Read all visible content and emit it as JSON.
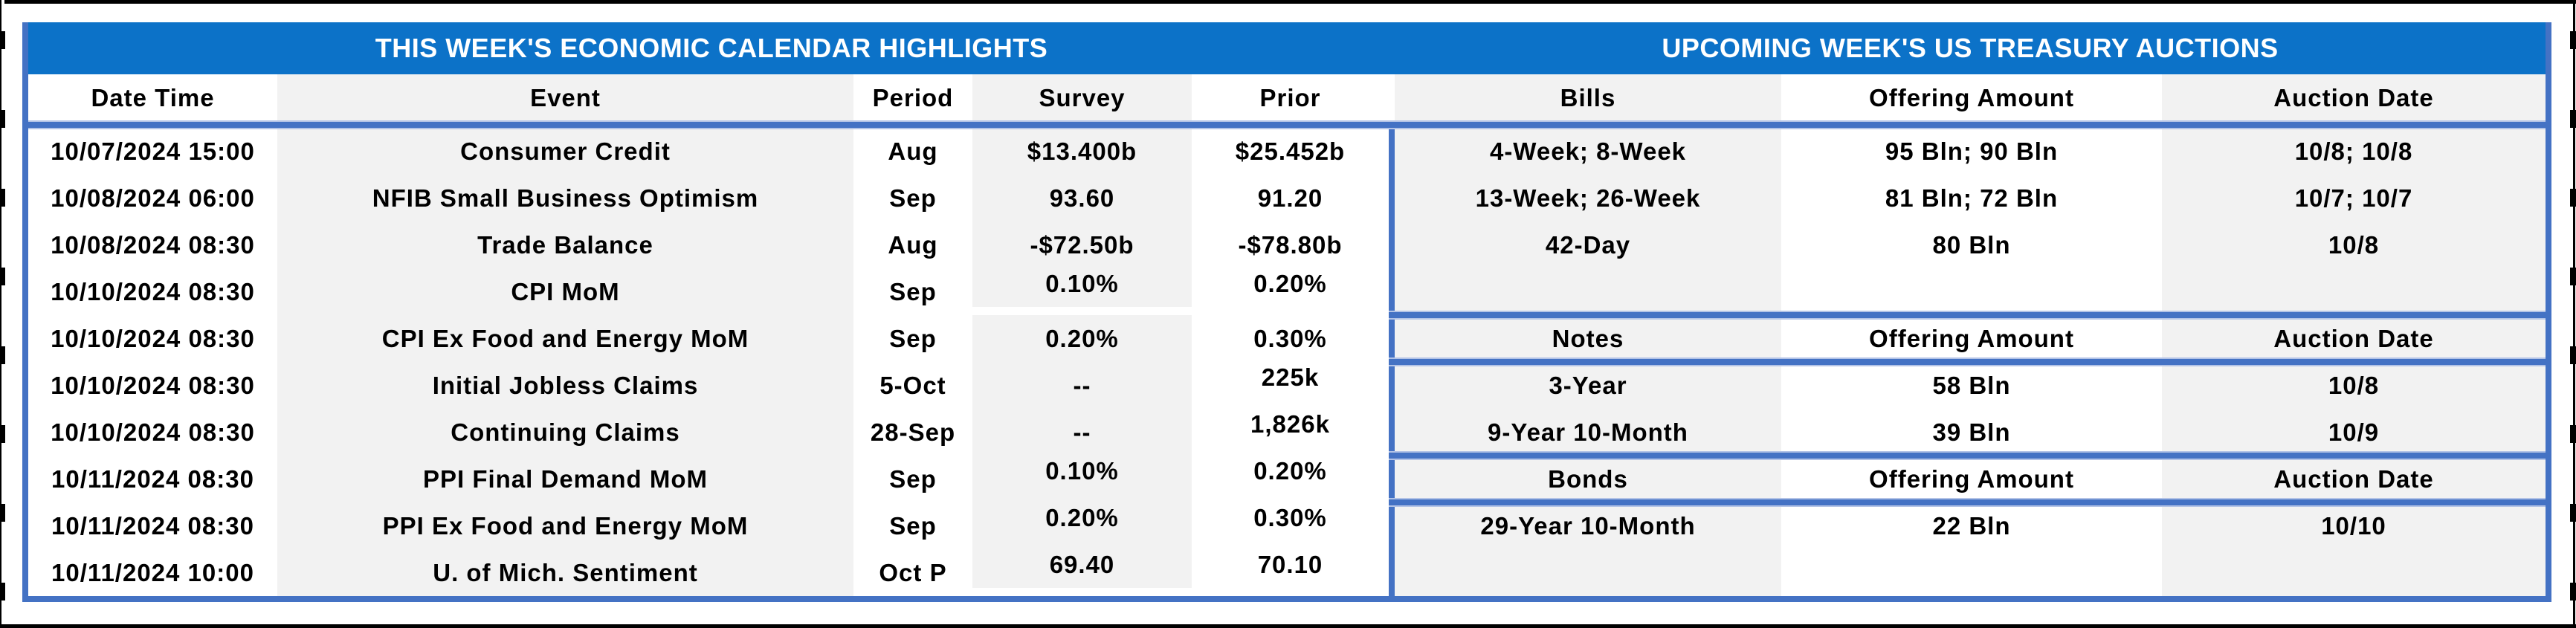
{
  "left_table": {
    "title": "THIS WEEK'S ECONOMIC CALENDAR HIGHLIGHTS",
    "columns": [
      "Date Time",
      "Event",
      "Period",
      "Survey",
      "Prior"
    ],
    "rows": [
      {
        "date": "10/07/2024 15:00",
        "event": "Consumer Credit",
        "period": "Aug",
        "survey": "$13.400b",
        "prior": "$25.452b"
      },
      {
        "date": "10/08/2024 06:00",
        "event": "NFIB Small Business Optimism",
        "period": "Sep",
        "survey": "93.60",
        "prior": "91.20"
      },
      {
        "date": "10/08/2024 08:30",
        "event": "Trade Balance",
        "period": "Aug",
        "survey": "-$72.50b",
        "prior": "-$78.80b"
      },
      {
        "date": "10/10/2024 08:30",
        "event": "CPI MoM",
        "period": "Sep",
        "survey": "0.10%",
        "prior": "0.20%"
      },
      {
        "date": "10/10/2024 08:30",
        "event": "CPI Ex Food and Energy MoM",
        "period": "Sep",
        "survey": "0.20%",
        "prior": "0.30%"
      },
      {
        "date": "10/10/2024 08:30",
        "event": "Initial Jobless Claims",
        "period": "5-Oct",
        "survey": "--",
        "prior": "225k"
      },
      {
        "date": "10/10/2024 08:30",
        "event": "Continuing Claims",
        "period": "28-Sep",
        "survey": "--",
        "prior": "1,826k"
      },
      {
        "date": "10/11/2024 08:30",
        "event": "PPI Final Demand MoM",
        "period": "Sep",
        "survey": "0.10%",
        "prior": "0.20%"
      },
      {
        "date": "10/11/2024 08:30",
        "event": "PPI Ex Food and Energy MoM",
        "period": "Sep",
        "survey": "0.20%",
        "prior": "0.30%"
      },
      {
        "date": "10/11/2024 10:00",
        "event": "U. of Mich. Sentiment",
        "period": "Oct P",
        "survey": "69.40",
        "prior": "70.10"
      }
    ]
  },
  "right_table": {
    "title": "UPCOMING WEEK'S US TREASURY AUCTIONS",
    "sections": [
      {
        "header": [
          "Bills",
          "Offering Amount",
          "Auction Date"
        ],
        "rows": [
          [
            "4-Week; 8-Week",
            "95 Bln; 90 Bln",
            "10/8; 10/8"
          ],
          [
            "13-Week; 26-Week",
            "81 Bln; 72 Bln",
            "10/7; 10/7"
          ],
          [
            "42-Day",
            "80 Bln",
            "10/8"
          ],
          [
            "",
            "",
            ""
          ]
        ]
      },
      {
        "header": [
          "Notes",
          "Offering Amount",
          "Auction Date"
        ],
        "rows": [
          [
            "3-Year",
            "58 Bln",
            "10/8"
          ],
          [
            "9-Year 10-Month",
            "39 Bln",
            "10/9"
          ]
        ]
      },
      {
        "header": [
          "Bonds",
          "Offering Amount",
          "Auction Date"
        ],
        "rows": [
          [
            "29-Year 10-Month",
            "22 Bln",
            "10/10"
          ],
          [
            "",
            "",
            ""
          ]
        ]
      }
    ]
  },
  "colors": {
    "title_bar_blue": "#0c72c8",
    "table_border_blue": "#4472c4",
    "column_shade_gray": "#f2f2f2",
    "title_text_white": "#ffffff",
    "body_text_black": "#000000",
    "window_edge_black": "#000000"
  }
}
